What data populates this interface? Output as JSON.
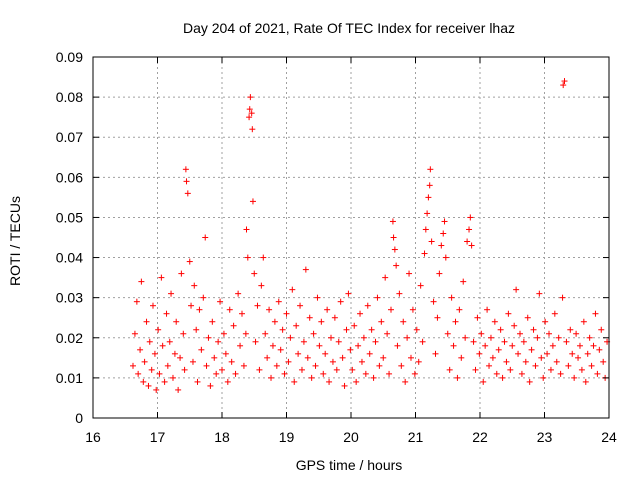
{
  "chart_data": {
    "type": "scatter",
    "title": "Day 204 of 2021, Rate Of TEC Index for receiver lhaz",
    "xlabel": "GPS time / hours",
    "ylabel": "ROTI / TECUs",
    "xlim": [
      16,
      24
    ],
    "ylim": [
      0,
      0.09
    ],
    "x_ticks": [
      "16",
      "17",
      "18",
      "19",
      "20",
      "21",
      "22",
      "23",
      "24"
    ],
    "y_ticks": [
      "0",
      "0.01",
      "0.02",
      "0.03",
      "0.04",
      "0.05",
      "0.06",
      "0.07",
      "0.08",
      "0.09"
    ],
    "grid": true,
    "marker": "+",
    "color": "#ff0000",
    "series": [
      {
        "points": [
          [
            16.62,
            0.013
          ],
          [
            16.65,
            0.021
          ],
          [
            16.68,
            0.029
          ],
          [
            16.7,
            0.011
          ],
          [
            16.73,
            0.017
          ],
          [
            16.75,
            0.034
          ],
          [
            16.78,
            0.009
          ],
          [
            16.8,
            0.014
          ],
          [
            16.83,
            0.024
          ],
          [
            16.86,
            0.008
          ],
          [
            16.88,
            0.019
          ],
          [
            16.91,
            0.012
          ],
          [
            16.93,
            0.028
          ],
          [
            16.96,
            0.016
          ],
          [
            16.98,
            0.007
          ],
          [
            17.01,
            0.022
          ],
          [
            17.03,
            0.011
          ],
          [
            17.06,
            0.035
          ],
          [
            17.08,
            0.018
          ],
          [
            17.11,
            0.009
          ],
          [
            17.14,
            0.026
          ],
          [
            17.16,
            0.013
          ],
          [
            17.19,
            0.019
          ],
          [
            17.21,
            0.031
          ],
          [
            17.24,
            0.01
          ],
          [
            17.27,
            0.016
          ],
          [
            17.29,
            0.024
          ],
          [
            17.32,
            0.007
          ],
          [
            17.35,
            0.015
          ],
          [
            17.37,
            0.036
          ],
          [
            17.4,
            0.021
          ],
          [
            17.42,
            0.012
          ],
          [
            17.44,
            0.062
          ],
          [
            17.45,
            0.059
          ],
          [
            17.47,
            0.056
          ],
          [
            17.5,
            0.039
          ],
          [
            17.52,
            0.028
          ],
          [
            17.55,
            0.014
          ],
          [
            17.57,
            0.033
          ],
          [
            17.6,
            0.022
          ],
          [
            17.62,
            0.009
          ],
          [
            17.65,
            0.027
          ],
          [
            17.68,
            0.017
          ],
          [
            17.71,
            0.03
          ],
          [
            17.74,
            0.045
          ],
          [
            17.76,
            0.013
          ],
          [
            17.79,
            0.02
          ],
          [
            17.82,
            0.008
          ],
          [
            17.85,
            0.024
          ],
          [
            17.88,
            0.015
          ],
          [
            17.91,
            0.011
          ],
          [
            17.94,
            0.019
          ],
          [
            17.97,
            0.029
          ],
          [
            18.0,
            0.012
          ],
          [
            18.03,
            0.021
          ],
          [
            18.06,
            0.016
          ],
          [
            18.09,
            0.009
          ],
          [
            18.12,
            0.027
          ],
          [
            18.15,
            0.014
          ],
          [
            18.18,
            0.023
          ],
          [
            18.21,
            0.011
          ],
          [
            18.25,
            0.031
          ],
          [
            18.28,
            0.018
          ],
          [
            18.31,
            0.026
          ],
          [
            18.34,
            0.013
          ],
          [
            18.37,
            0.021
          ],
          [
            18.38,
            0.047
          ],
          [
            18.4,
            0.04
          ],
          [
            18.42,
            0.075
          ],
          [
            18.43,
            0.077
          ],
          [
            18.44,
            0.08
          ],
          [
            18.46,
            0.076
          ],
          [
            18.47,
            0.072
          ],
          [
            18.48,
            0.054
          ],
          [
            18.5,
            0.036
          ],
          [
            18.52,
            0.019
          ],
          [
            18.55,
            0.028
          ],
          [
            18.58,
            0.012
          ],
          [
            18.61,
            0.033
          ],
          [
            18.64,
            0.04
          ],
          [
            18.67,
            0.021
          ],
          [
            18.7,
            0.015
          ],
          [
            18.73,
            0.027
          ],
          [
            18.76,
            0.01
          ],
          [
            18.79,
            0.018
          ],
          [
            18.82,
            0.024
          ],
          [
            18.85,
            0.013
          ],
          [
            18.88,
            0.029
          ],
          [
            18.91,
            0.017
          ],
          [
            18.94,
            0.022
          ],
          [
            18.97,
            0.011
          ],
          [
            19.0,
            0.026
          ],
          [
            19.03,
            0.014
          ],
          [
            19.06,
            0.02
          ],
          [
            19.09,
            0.032
          ],
          [
            19.12,
            0.009
          ],
          [
            19.15,
            0.023
          ],
          [
            19.18,
            0.016
          ],
          [
            19.21,
            0.028
          ],
          [
            19.24,
            0.012
          ],
          [
            19.27,
            0.019
          ],
          [
            19.3,
            0.037
          ],
          [
            19.33,
            0.015
          ],
          [
            19.36,
            0.025
          ],
          [
            19.39,
            0.01
          ],
          [
            19.42,
            0.021
          ],
          [
            19.45,
            0.013
          ],
          [
            19.48,
            0.03
          ],
          [
            19.51,
            0.018
          ],
          [
            19.54,
            0.024
          ],
          [
            19.57,
            0.011
          ],
          [
            19.6,
            0.016
          ],
          [
            19.63,
            0.027
          ],
          [
            19.66,
            0.009
          ],
          [
            19.69,
            0.02
          ],
          [
            19.72,
            0.014
          ],
          [
            19.75,
            0.025
          ],
          [
            19.78,
            0.012
          ],
          [
            19.81,
            0.019
          ],
          [
            19.84,
            0.029
          ],
          [
            19.87,
            0.015
          ],
          [
            19.9,
            0.008
          ],
          [
            19.93,
            0.022
          ],
          [
            19.96,
            0.031
          ],
          [
            19.99,
            0.017
          ],
          [
            20.02,
            0.012
          ],
          [
            20.05,
            0.023
          ],
          [
            20.08,
            0.009
          ],
          [
            20.11,
            0.018
          ],
          [
            20.14,
            0.026
          ],
          [
            20.17,
            0.014
          ],
          [
            20.2,
            0.02
          ],
          [
            20.23,
            0.011
          ],
          [
            20.26,
            0.028
          ],
          [
            20.29,
            0.016
          ],
          [
            20.32,
            0.022
          ],
          [
            20.35,
            0.01
          ],
          [
            20.38,
            0.019
          ],
          [
            20.41,
            0.03
          ],
          [
            20.44,
            0.013
          ],
          [
            20.47,
            0.024
          ],
          [
            20.5,
            0.015
          ],
          [
            20.53,
            0.035
          ],
          [
            20.56,
            0.021
          ],
          [
            20.59,
            0.011
          ],
          [
            20.62,
            0.027
          ],
          [
            20.65,
            0.049
          ],
          [
            20.66,
            0.045
          ],
          [
            20.68,
            0.042
          ],
          [
            20.7,
            0.038
          ],
          [
            20.72,
            0.018
          ],
          [
            20.75,
            0.031
          ],
          [
            20.78,
            0.013
          ],
          [
            20.81,
            0.024
          ],
          [
            20.84,
            0.009
          ],
          [
            20.87,
            0.02
          ],
          [
            20.9,
            0.036
          ],
          [
            20.93,
            0.015
          ],
          [
            20.96,
            0.027
          ],
          [
            20.99,
            0.011
          ],
          [
            21.02,
            0.022
          ],
          [
            21.05,
            0.014
          ],
          [
            21.08,
            0.033
          ],
          [
            21.11,
            0.019
          ],
          [
            21.14,
            0.041
          ],
          [
            21.16,
            0.047
          ],
          [
            21.18,
            0.051
          ],
          [
            21.2,
            0.055
          ],
          [
            21.22,
            0.058
          ],
          [
            21.23,
            0.062
          ],
          [
            21.25,
            0.044
          ],
          [
            21.28,
            0.029
          ],
          [
            21.31,
            0.016
          ],
          [
            21.34,
            0.025
          ],
          [
            21.37,
            0.036
          ],
          [
            21.4,
            0.043
          ],
          [
            21.43,
            0.046
          ],
          [
            21.45,
            0.049
          ],
          [
            21.47,
            0.04
          ],
          [
            21.5,
            0.021
          ],
          [
            21.53,
            0.012
          ],
          [
            21.56,
            0.03
          ],
          [
            21.59,
            0.018
          ],
          [
            21.62,
            0.024
          ],
          [
            21.65,
            0.01
          ],
          [
            21.68,
            0.027
          ],
          [
            21.71,
            0.015
          ],
          [
            21.74,
            0.034
          ],
          [
            21.77,
            0.02
          ],
          [
            21.8,
            0.044
          ],
          [
            21.83,
            0.047
          ],
          [
            21.85,
            0.05
          ],
          [
            21.87,
            0.043
          ],
          [
            21.9,
            0.019
          ],
          [
            21.93,
            0.012
          ],
          [
            21.96,
            0.025
          ],
          [
            21.99,
            0.016
          ],
          [
            22.02,
            0.021
          ],
          [
            22.05,
            0.009
          ],
          [
            22.08,
            0.018
          ],
          [
            22.11,
            0.027
          ],
          [
            22.14,
            0.013
          ],
          [
            22.17,
            0.02
          ],
          [
            22.2,
            0.015
          ],
          [
            22.23,
            0.024
          ],
          [
            22.26,
            0.011
          ],
          [
            22.29,
            0.017
          ],
          [
            22.32,
            0.022
          ],
          [
            22.35,
            0.01
          ],
          [
            22.38,
            0.019
          ],
          [
            22.41,
            0.014
          ],
          [
            22.44,
            0.026
          ],
          [
            22.47,
            0.012
          ],
          [
            22.5,
            0.018
          ],
          [
            22.53,
            0.023
          ],
          [
            22.56,
            0.032
          ],
          [
            22.59,
            0.016
          ],
          [
            22.62,
            0.021
          ],
          [
            22.65,
            0.011
          ],
          [
            22.68,
            0.019
          ],
          [
            22.71,
            0.014
          ],
          [
            22.74,
            0.025
          ],
          [
            22.77,
            0.009
          ],
          [
            22.8,
            0.017
          ],
          [
            22.83,
            0.022
          ],
          [
            22.86,
            0.013
          ],
          [
            22.89,
            0.02
          ],
          [
            22.92,
            0.031
          ],
          [
            22.95,
            0.015
          ],
          [
            22.98,
            0.01
          ],
          [
            23.01,
            0.024
          ],
          [
            23.04,
            0.016
          ],
          [
            23.07,
            0.021
          ],
          [
            23.1,
            0.012
          ],
          [
            23.13,
            0.018
          ],
          [
            23.16,
            0.026
          ],
          [
            23.19,
            0.014
          ],
          [
            23.22,
            0.02
          ],
          [
            23.25,
            0.011
          ],
          [
            23.28,
            0.03
          ],
          [
            23.29,
            0.083
          ],
          [
            23.31,
            0.084
          ],
          [
            23.34,
            0.019
          ],
          [
            23.37,
            0.013
          ],
          [
            23.4,
            0.022
          ],
          [
            23.43,
            0.016
          ],
          [
            23.46,
            0.01
          ],
          [
            23.49,
            0.021
          ],
          [
            23.52,
            0.015
          ],
          [
            23.55,
            0.018
          ],
          [
            23.58,
            0.012
          ],
          [
            23.61,
            0.024
          ],
          [
            23.64,
            0.009
          ],
          [
            23.67,
            0.016
          ],
          [
            23.7,
            0.02
          ],
          [
            23.73,
            0.013
          ],
          [
            23.76,
            0.018
          ],
          [
            23.79,
            0.026
          ],
          [
            23.82,
            0.011
          ],
          [
            23.85,
            0.017
          ],
          [
            23.88,
            0.022
          ],
          [
            23.91,
            0.014
          ],
          [
            23.94,
            0.01
          ],
          [
            23.97,
            0.019
          ]
        ]
      }
    ]
  }
}
